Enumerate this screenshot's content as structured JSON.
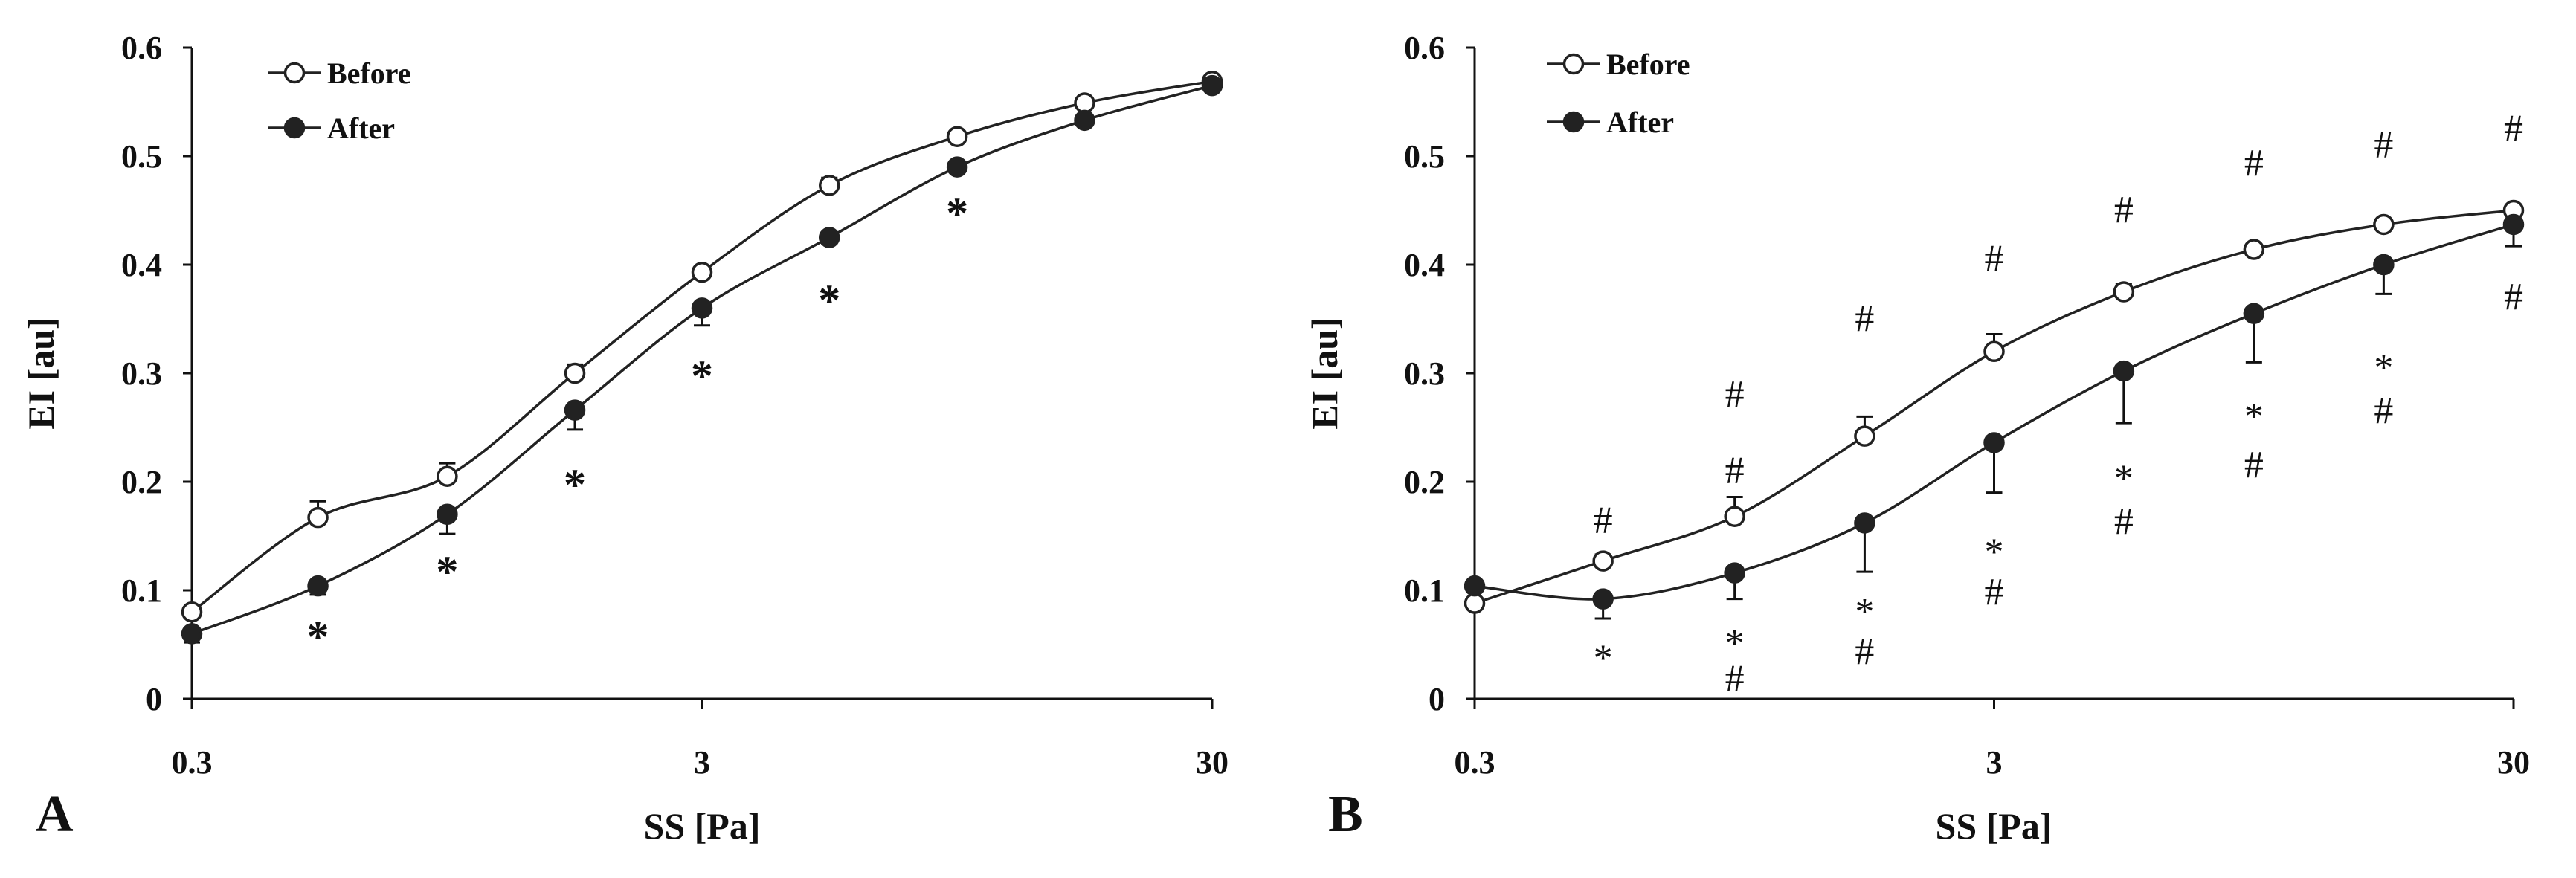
{
  "chart_data": [
    {
      "type": "line",
      "panel_letter": "A",
      "title": "",
      "xlabel": "SS [Pa]",
      "ylabel": "EI [au]",
      "xscale": "log",
      "xlim": [
        0.3,
        30
      ],
      "ylim": [
        0,
        0.6
      ],
      "xticks": [
        0.3,
        3,
        30
      ],
      "xtick_labels": [
        "0.3",
        "3",
        "30"
      ],
      "yticks": [
        0,
        0.1,
        0.2,
        0.3,
        0.4,
        0.5,
        0.6
      ],
      "ytick_labels": [
        "0",
        "0.1",
        "0.2",
        "0.3",
        "0.4",
        "0.5",
        "0.6"
      ],
      "grid": false,
      "legend_position": "top-left",
      "x": [
        0.3,
        0.53,
        0.95,
        1.69,
        3.0,
        5.33,
        9.49,
        16.87,
        30.0
      ],
      "series": [
        {
          "name": "Before",
          "marker": "open-circle",
          "values": [
            0.08,
            0.167,
            0.205,
            0.3,
            0.393,
            0.473,
            0.518,
            0.549,
            0.569
          ],
          "errors": [
            0.005,
            0.015,
            0.012,
            0.008,
            0.006,
            0.007,
            0.004,
            0.004,
            0.004
          ]
        },
        {
          "name": "After",
          "marker": "filled-circle",
          "values": [
            0.06,
            0.104,
            0.17,
            0.266,
            0.36,
            0.425,
            0.49,
            0.533,
            0.565
          ],
          "errors": [
            0.008,
            0.008,
            0.018,
            0.018,
            0.016,
            0.006,
            0.005,
            0.004,
            0.004
          ]
        }
      ],
      "annotations": [
        {
          "x": 0.53,
          "y": 0.06,
          "text": "*"
        },
        {
          "x": 0.95,
          "y": 0.12,
          "text": "*"
        },
        {
          "x": 1.69,
          "y": 0.2,
          "text": "*"
        },
        {
          "x": 3.0,
          "y": 0.3,
          "text": "*"
        },
        {
          "x": 5.33,
          "y": 0.37,
          "text": "*"
        },
        {
          "x": 9.49,
          "y": 0.45,
          "text": "*"
        }
      ]
    },
    {
      "type": "line",
      "panel_letter": "B",
      "title": "",
      "xlabel": "SS [Pa]",
      "ylabel": "EI [au]",
      "xscale": "log",
      "xlim": [
        0.3,
        30
      ],
      "ylim": [
        0,
        0.6
      ],
      "xticks": [
        0.3,
        3,
        30
      ],
      "xtick_labels": [
        "0.3",
        "3",
        "30"
      ],
      "yticks": [
        0,
        0.1,
        0.2,
        0.3,
        0.4,
        0.5,
        0.6
      ],
      "ytick_labels": [
        "0",
        "0.1",
        "0.2",
        "0.3",
        "0.4",
        "0.5",
        "0.6"
      ],
      "grid": false,
      "legend_position": "top-left",
      "x": [
        0.3,
        0.53,
        0.95,
        1.69,
        3.0,
        5.33,
        9.49,
        16.87,
        30.0
      ],
      "series": [
        {
          "name": "Before",
          "marker": "open-circle",
          "values": [
            0.088,
            0.127,
            0.168,
            0.242,
            0.32,
            0.375,
            0.414,
            0.437,
            0.45
          ],
          "errors": [
            0.005,
            0.006,
            0.018,
            0.018,
            0.016,
            0.007,
            0.005,
            0.005,
            0.005
          ]
        },
        {
          "name": "After",
          "marker": "filled-circle",
          "values": [
            0.104,
            0.092,
            0.116,
            0.162,
            0.236,
            0.302,
            0.355,
            0.4,
            0.437
          ],
          "errors": [
            0.005,
            0.018,
            0.024,
            0.045,
            0.046,
            0.048,
            0.045,
            0.027,
            0.02
          ]
        }
      ],
      "annotations": [
        {
          "x": 0.53,
          "y": 0.164,
          "text": "#"
        },
        {
          "x": 0.53,
          "y": 0.042,
          "text": "*"
        },
        {
          "x": 0.95,
          "y": 0.21,
          "text": "#"
        },
        {
          "x": 0.95,
          "y": 0.056,
          "text": "*"
        },
        {
          "x": 0.95,
          "y": 0.018,
          "text": "#"
        },
        {
          "x": 0.95,
          "y": 0.28,
          "text": "#"
        },
        {
          "x": 1.69,
          "y": 0.085,
          "text": "*"
        },
        {
          "x": 1.69,
          "y": 0.043,
          "text": "#"
        },
        {
          "x": 1.69,
          "y": 0.35,
          "text": "#"
        },
        {
          "x": 3.0,
          "y": 0.14,
          "text": "*"
        },
        {
          "x": 3.0,
          "y": 0.098,
          "text": "#"
        },
        {
          "x": 3.0,
          "y": 0.405,
          "text": "#"
        },
        {
          "x": 5.33,
          "y": 0.208,
          "text": "*"
        },
        {
          "x": 5.33,
          "y": 0.163,
          "text": "#"
        },
        {
          "x": 5.33,
          "y": 0.45,
          "text": "#"
        },
        {
          "x": 9.49,
          "y": 0.265,
          "text": "*"
        },
        {
          "x": 9.49,
          "y": 0.215,
          "text": "#"
        },
        {
          "x": 9.49,
          "y": 0.493,
          "text": "#"
        },
        {
          "x": 16.87,
          "y": 0.31,
          "text": "*"
        },
        {
          "x": 16.87,
          "y": 0.265,
          "text": "#"
        },
        {
          "x": 16.87,
          "y": 0.51,
          "text": "#"
        },
        {
          "x": 30.0,
          "y": 0.525,
          "text": "#"
        },
        {
          "x": 30.0,
          "y": 0.37,
          "text": "#"
        }
      ]
    }
  ]
}
